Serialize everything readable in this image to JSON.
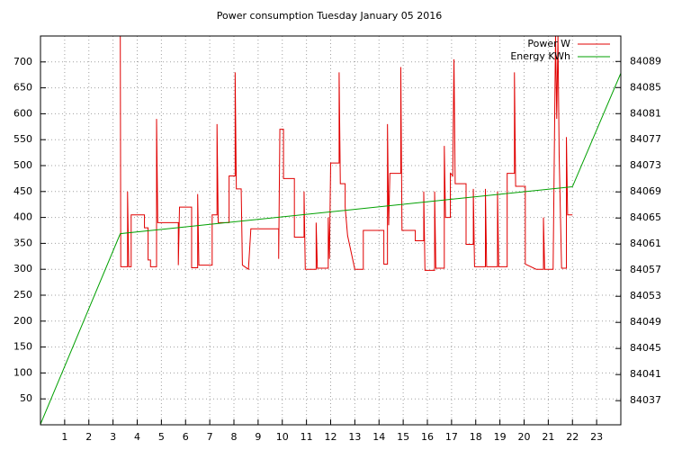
{
  "chart_data": {
    "type": "line",
    "title": "Power consumption Tuesday January 05 2016",
    "xlim": [
      0,
      24
    ],
    "xticks": [
      1,
      2,
      3,
      4,
      5,
      6,
      7,
      8,
      9,
      10,
      11,
      12,
      13,
      14,
      15,
      16,
      17,
      18,
      19,
      20,
      21,
      22,
      23
    ],
    "ylim": [
      0,
      750
    ],
    "yticks": [
      50,
      100,
      150,
      200,
      250,
      300,
      350,
      400,
      450,
      500,
      550,
      600,
      650,
      700
    ],
    "y2lim": [
      84033.3,
      84092.9
    ],
    "y2ticks": [
      84037,
      84041,
      84045,
      84049,
      84053,
      84057,
      84061,
      84065,
      84069,
      84073,
      84077,
      84081,
      84085,
      84089
    ],
    "grid": true,
    "legend": "top-right",
    "series": [
      {
        "name": "Power W",
        "color": "#e00000",
        "x": [
          3.3,
          3.32,
          3.6,
          3.6,
          3.65,
          3.75,
          3.75,
          4.3,
          4.3,
          4.45,
          4.45,
          4.55,
          4.55,
          4.8,
          4.8,
          4.85,
          5.7,
          5.7,
          5.75,
          6.25,
          6.25,
          6.5,
          6.5,
          6.55,
          7.1,
          7.1,
          7.3,
          7.3,
          7.35,
          7.8,
          7.8,
          8.05,
          8.05,
          8.1,
          8.3,
          8.35,
          8.6,
          8.7,
          9.85,
          9.85,
          9.9,
          10.05,
          10.05,
          10.5,
          10.5,
          10.9,
          10.9,
          10.95,
          11.4,
          11.4,
          11.45,
          11.9,
          11.9,
          11.95,
          12.0,
          12.35,
          12.35,
          12.4,
          12.6,
          12.6,
          12.7,
          13.0,
          13.35,
          13.35,
          14.2,
          14.2,
          14.35,
          14.35,
          14.4,
          14.45,
          14.9,
          14.9,
          14.95,
          15.5,
          15.5,
          15.85,
          15.85,
          15.9,
          16.3,
          16.3,
          16.35,
          16.7,
          16.7,
          16.75,
          16.95,
          16.95,
          17.05,
          17.1,
          17.15,
          17.6,
          17.6,
          17.9,
          17.9,
          17.95,
          18.4,
          18.4,
          18.45,
          18.9,
          18.9,
          18.95,
          19.3,
          19.3,
          19.6,
          19.6,
          19.65,
          20.05,
          20.05,
          20.5,
          20.8,
          20.8,
          20.85,
          21.2,
          21.3,
          21.35,
          21.4,
          21.45,
          21.55,
          21.75,
          21.75,
          21.8,
          22.0
        ],
        "values": [
          750,
          305,
          305,
          450,
          305,
          305,
          405,
          405,
          380,
          380,
          318,
          318,
          305,
          305,
          590,
          390,
          390,
          308,
          420,
          420,
          303,
          303,
          445,
          308,
          308,
          405,
          405,
          580,
          390,
          390,
          480,
          480,
          680,
          455,
          455,
          308,
          300,
          378,
          378,
          320,
          570,
          570,
          475,
          475,
          362,
          362,
          450,
          300,
          300,
          390,
          302,
          302,
          400,
          320,
          505,
          505,
          680,
          465,
          465,
          420,
          365,
          300,
          300,
          375,
          375,
          310,
          310,
          580,
          385,
          485,
          485,
          690,
          375,
          375,
          355,
          355,
          450,
          298,
          298,
          450,
          302,
          302,
          538,
          400,
          400,
          485,
          480,
          705,
          465,
          465,
          348,
          348,
          455,
          305,
          305,
          455,
          305,
          305,
          450,
          305,
          305,
          485,
          485,
          680,
          460,
          460,
          310,
          300,
          300,
          400,
          300,
          300,
          750,
          590,
          750,
          520,
          302,
          302,
          555,
          405,
          405
        ]
      },
      {
        "name": "Energy KWh",
        "color": "#00a000",
        "axis": "y2",
        "x": [
          0,
          3.3,
          22,
          24
        ],
        "values": [
          84033.4,
          84062.6,
          84069.8,
          84087.2
        ]
      }
    ]
  }
}
